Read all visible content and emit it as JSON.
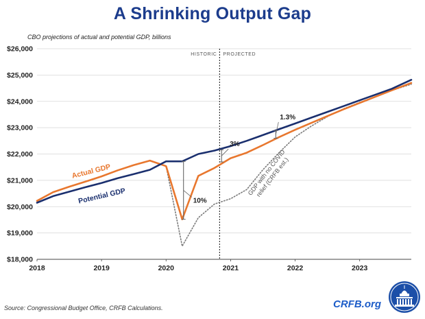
{
  "title": "A Shrinking Output Gap",
  "subtitle": "CBO projections of actual and potential GDP, billions",
  "source": "Source: Congressional Budget Office, CRFB Calculations.",
  "brand": "CRFB.org",
  "colors": {
    "title": "#1c3c8c",
    "potential": "#1a2f6e",
    "actual": "#e8772e",
    "nocovid": "#7a7a7a",
    "brand": "#1c5cc8"
  },
  "chart_data": {
    "type": "line",
    "title": "A Shrinking Output Gap",
    "subtitle": "CBO projections of actual and potential GDP, billions",
    "xlim": [
      2018,
      2023.8
    ],
    "ylim": [
      18000,
      26000
    ],
    "y_ticks": [
      18000,
      19000,
      20000,
      21000,
      22000,
      23000,
      24000,
      25000,
      26000
    ],
    "y_tick_labels": [
      "$18,000",
      "$19,000",
      "$20,000",
      "$21,000",
      "$22,000",
      "$23,000",
      "$24,000",
      "$25,000",
      "$26,000"
    ],
    "x_ticks": [
      2018,
      2019,
      2020,
      2021,
      2022,
      2023
    ],
    "x_tick_labels": [
      "2018",
      "2019",
      "2020",
      "2021",
      "2022",
      "2023"
    ],
    "grid": "horizontal",
    "divider": {
      "x": 2020.83,
      "left_label": "HISTORIC",
      "right_label": "PROJECTED"
    },
    "series": [
      {
        "name": "Potential GDP",
        "key": "potential",
        "x": [
          2018,
          2018.25,
          2018.5,
          2018.75,
          2019,
          2019.25,
          2019.5,
          2019.75,
          2020,
          2020.25,
          2020.5,
          2020.75,
          2021,
          2021.25,
          2021.5,
          2021.75,
          2022,
          2022.25,
          2022.5,
          2022.75,
          2023,
          2023.25,
          2023.5,
          2023.8
        ],
        "values": [
          20150,
          20400,
          20570,
          20740,
          20900,
          21080,
          21240,
          21400,
          21720,
          21720,
          22000,
          22130,
          22300,
          22500,
          22720,
          22940,
          23160,
          23380,
          23600,
          23820,
          24040,
          24260,
          24480,
          24820
        ]
      },
      {
        "name": "Actual GDP",
        "key": "actual",
        "x": [
          2018,
          2018.25,
          2018.5,
          2018.75,
          2019,
          2019.25,
          2019.5,
          2019.75,
          2020,
          2020.25,
          2020.5,
          2020.75,
          2021,
          2021.25,
          2021.5,
          2021.75,
          2022,
          2022.25,
          2022.5,
          2022.75,
          2023,
          2023.25,
          2023.5,
          2023.8
        ],
        "values": [
          20220,
          20550,
          20760,
          20950,
          21150,
          21380,
          21580,
          21750,
          21540,
          19520,
          21170,
          21470,
          21840,
          22050,
          22340,
          22640,
          22920,
          23180,
          23440,
          23700,
          23940,
          24180,
          24420,
          24700
        ]
      },
      {
        "name": "GDP with no COVID relief (CRFB est.)",
        "key": "nocovid",
        "x": [
          2020,
          2020.25,
          2020.5,
          2020.75,
          2021,
          2021.25,
          2021.5,
          2021.75,
          2022,
          2022.25,
          2022.5,
          2022.75,
          2023,
          2023.25,
          2023.5,
          2023.8
        ],
        "values": [
          21540,
          18500,
          19580,
          20100,
          20300,
          20650,
          21400,
          22050,
          22650,
          23060,
          23420,
          23720,
          23960,
          24190,
          24420,
          24650
        ]
      }
    ],
    "annotations": [
      {
        "text": "10%",
        "x": 2020.27,
        "y1": 19520,
        "y2": 21720
      },
      {
        "text": "3%",
        "x": 2020.86,
        "y1": 21700,
        "y2": 22160
      },
      {
        "text": "1.3%",
        "x": 2021.7,
        "y1": 22600,
        "y2": 22890
      }
    ],
    "series_labels": {
      "actual": "Actual GDP",
      "potential": "Potential GDP",
      "nocovid_line1": "GDP with no COVID",
      "nocovid_line2": "relief (CRFB est.)"
    }
  }
}
